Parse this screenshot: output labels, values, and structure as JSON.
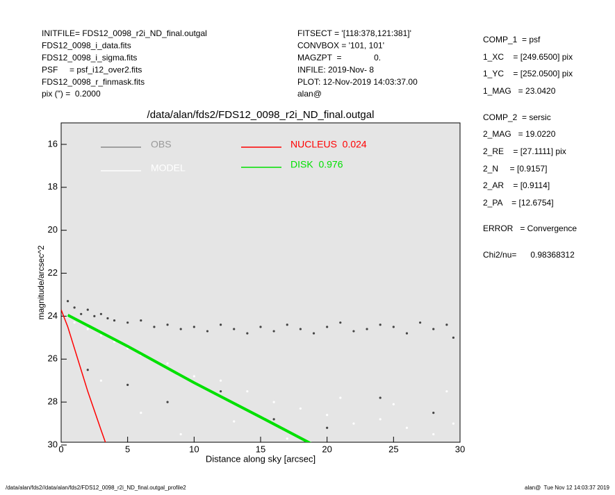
{
  "header": {
    "left": [
      "INITFILE= FDS12_0098_r2i_ND_final.outgal",
      "FDS12_0098_i_data.fits",
      "FDS12_0098_i_sigma.fits",
      "PSF     = psf_i12_over2.fits",
      "FDS12_0098_r_finmask.fits",
      "pix (\") =  0.2000"
    ],
    "middle": [
      "FITSECT = '[118:378,121:381]'",
      "CONVBOX = '101, 101'",
      "MAGZPT  =              0.",
      "INFILE: 2019-Nov- 8",
      "PLOT: 12-Nov-2019 14:03:37.00",
      "alan@"
    ]
  },
  "results": [
    "COMP_1  = psf",
    "1_XC    = [249.6500] pix",
    "1_YC    = [252.0500] pix",
    "1_MAG   = 23.0420",
    "COMP_2  = sersic",
    "2_MAG   = 19.0220",
    "2_RE    = [27.1111] pix",
    "2_N     = [0.9157]",
    "2_AR    = [0.9114]",
    "2_PA    = [12.6754]",
    "ERROR   = Convergence",
    "Chi2/nu=      0.98368312"
  ],
  "footer": {
    "left": "/data/alan/fds2//data/alan/fds2/FDS12_0098_r2i_ND_final.outgal_profile2",
    "right": "alan@  Tue Nov 12 14:03:37 2019"
  },
  "chart_data": {
    "type": "scatter",
    "title": "/data/alan/fds2/FDS12_0098_r2i_ND_final.outgal",
    "x_label": "Distance along sky [arcsec]",
    "y_label": "magnitude/arcsec^2",
    "xlim": [
      0,
      30
    ],
    "ylim": [
      30,
      15
    ],
    "xticks": [
      0,
      5,
      10,
      15,
      20,
      25,
      30
    ],
    "yticks": [
      16,
      18,
      20,
      22,
      24,
      26,
      28,
      30
    ],
    "series": [
      {
        "name": "OBS",
        "type": "scatter",
        "color": "#444444",
        "x": [
          0.5,
          1,
          1.5,
          2,
          2.5,
          3,
          3.5,
          4,
          5,
          6,
          7,
          8,
          9,
          10,
          11,
          12,
          13,
          14,
          15,
          16,
          17,
          18,
          19,
          20,
          21,
          22,
          23,
          24,
          25,
          26,
          27,
          28,
          29,
          29.5,
          2,
          5,
          8,
          12,
          16,
          20,
          24,
          28
        ],
        "values": [
          23.3,
          23.6,
          23.9,
          23.7,
          24.0,
          23.9,
          24.1,
          24.2,
          24.3,
          24.2,
          24.5,
          24.4,
          24.6,
          24.5,
          24.7,
          24.4,
          24.6,
          24.8,
          24.5,
          24.7,
          24.4,
          24.6,
          24.8,
          24.5,
          24.3,
          24.7,
          24.6,
          24.4,
          24.5,
          24.8,
          24.3,
          24.6,
          24.4,
          25.0,
          26.5,
          27.2,
          28.0,
          27.5,
          28.8,
          29.2,
          27.8,
          28.5
        ]
      },
      {
        "name": "MODEL",
        "type": "scatter",
        "color": "#ffffff",
        "x": [
          0.5,
          1,
          2,
          3,
          4,
          5,
          6,
          8,
          10,
          12,
          14,
          16,
          18,
          20,
          22,
          24,
          26,
          28,
          29.5,
          3,
          6,
          9,
          13,
          17,
          21,
          25,
          29
        ],
        "values": [
          24.0,
          24.3,
          24.6,
          24.9,
          25.2,
          25.5,
          25.8,
          26.2,
          26.8,
          27.0,
          27.5,
          28.0,
          28.3,
          28.6,
          29.0,
          28.8,
          29.2,
          29.5,
          29.0,
          27.0,
          28.5,
          29.5,
          28.9,
          29.7,
          27.8,
          28.1,
          27.5
        ]
      },
      {
        "name": "NUCLEUS  0.024",
        "type": "line",
        "color": "#ff0000",
        "x": [
          0,
          0.5,
          1,
          1.5,
          2,
          2.5,
          3,
          3.4
        ],
        "values": [
          23.7,
          24.5,
          25.5,
          26.5,
          27.5,
          28.4,
          29.3,
          30
        ]
      },
      {
        "name": "DISK  0.976",
        "type": "line",
        "color": "#00e000",
        "x": [
          0.5,
          5,
          10,
          15,
          19
        ],
        "values": [
          23.95,
          25.4,
          27.1,
          28.7,
          30
        ]
      }
    ]
  }
}
